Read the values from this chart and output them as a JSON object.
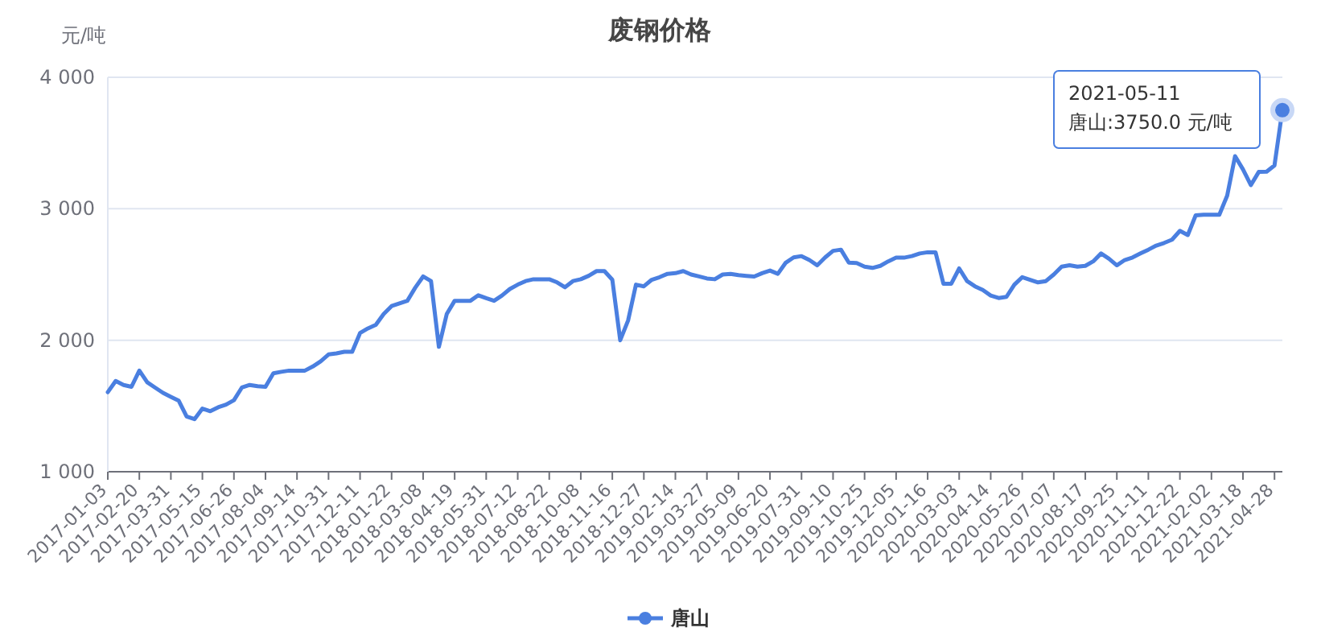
{
  "chart_data": {
    "type": "line",
    "title": "废钢价格",
    "ylabel": "元/吨",
    "categories": [
      "2017-01-03",
      null,
      null,
      null,
      "2017-02-20",
      null,
      null,
      null,
      "2017-03-31",
      null,
      null,
      null,
      "2017-05-15",
      null,
      null,
      null,
      "2017-06-26",
      null,
      null,
      null,
      "2017-08-04",
      null,
      null,
      null,
      "2017-09-14",
      null,
      null,
      null,
      "2017-10-31",
      null,
      null,
      null,
      "2017-12-11",
      null,
      null,
      null,
      "2018-01-22",
      null,
      null,
      null,
      "2018-03-08",
      null,
      null,
      null,
      "2018-04-19",
      null,
      null,
      null,
      "2018-05-31",
      null,
      null,
      null,
      "2018-07-12",
      null,
      null,
      null,
      "2018-08-22",
      null,
      null,
      null,
      "2018-10-08",
      null,
      null,
      null,
      "2018-11-16",
      null,
      null,
      null,
      "2018-12-27",
      null,
      null,
      null,
      "2019-02-14",
      null,
      null,
      null,
      "2019-03-27",
      null,
      null,
      null,
      "2019-05-09",
      null,
      null,
      null,
      "2019-06-20",
      null,
      null,
      null,
      "2019-07-31",
      null,
      null,
      null,
      "2019-09-10",
      null,
      null,
      null,
      "2019-10-25",
      null,
      null,
      null,
      "2019-12-05",
      null,
      null,
      null,
      "2020-01-16",
      null,
      null,
      null,
      "2020-03-03",
      null,
      null,
      null,
      "2020-04-14",
      null,
      null,
      null,
      "2020-05-26",
      null,
      null,
      null,
      "2020-07-07",
      null,
      null,
      null,
      "2020-08-17",
      null,
      null,
      null,
      "2020-09-25",
      null,
      null,
      null,
      "2020-11-11",
      null,
      null,
      null,
      "2020-12-22",
      null,
      null,
      null,
      "2021-02-02",
      null,
      null,
      null,
      "2021-03-18",
      null,
      null,
      null,
      "2021-04-28",
      null
    ],
    "series": [
      {
        "name": "唐山",
        "color": "#4a7fe0",
        "values": [
          1605,
          1690,
          1660,
          1646,
          1769,
          1680,
          1640,
          1600,
          1570,
          1540,
          1420,
          1400,
          1480,
          1460,
          1490,
          1510,
          1544,
          1640,
          1660,
          1650,
          1646,
          1748,
          1760,
          1769,
          1769,
          1769,
          1800,
          1840,
          1892,
          1900,
          1912,
          1912,
          2055,
          2090,
          2117,
          2200,
          2260,
          2280,
          2300,
          2400,
          2485,
          2450,
          1950,
          2200,
          2300,
          2300,
          2300,
          2342,
          2320,
          2300,
          2340,
          2390,
          2423,
          2450,
          2464,
          2464,
          2464,
          2440,
          2403,
          2450,
          2464,
          2490,
          2526,
          2526,
          2460,
          2000,
          2150,
          2423,
          2410,
          2460,
          2480,
          2505,
          2510,
          2526,
          2500,
          2485,
          2470,
          2464,
          2500,
          2505,
          2495,
          2490,
          2485,
          2510,
          2530,
          2505,
          2590,
          2630,
          2640,
          2610,
          2570,
          2630,
          2680,
          2689,
          2590,
          2587,
          2560,
          2550,
          2566,
          2600,
          2628,
          2628,
          2640,
          2660,
          2669,
          2669,
          2430,
          2430,
          2546,
          2450,
          2410,
          2382,
          2340,
          2321,
          2330,
          2423,
          2480,
          2460,
          2440,
          2450,
          2500,
          2560,
          2570,
          2560,
          2566,
          2600,
          2660,
          2620,
          2570,
          2610,
          2630,
          2660,
          2689,
          2720,
          2740,
          2765,
          2832,
          2800,
          2950,
          2955,
          2955,
          2955,
          3100,
          3400,
          3300,
          3180,
          3280,
          3282,
          3330,
          3750
        ]
      }
    ],
    "ylim": [
      1000,
      4000
    ],
    "yticks": [
      {
        "value": 1000,
        "label": "1 000"
      },
      {
        "value": 2000,
        "label": "2 000"
      },
      {
        "value": 3000,
        "label": "3 000"
      },
      {
        "value": 4000,
        "label": "4 000"
      }
    ],
    "grid": "y",
    "legend": "bottom",
    "line_style": "solid",
    "annotations": [
      "2021-05-11",
      "唐山:3750.0 元/吨"
    ]
  }
}
